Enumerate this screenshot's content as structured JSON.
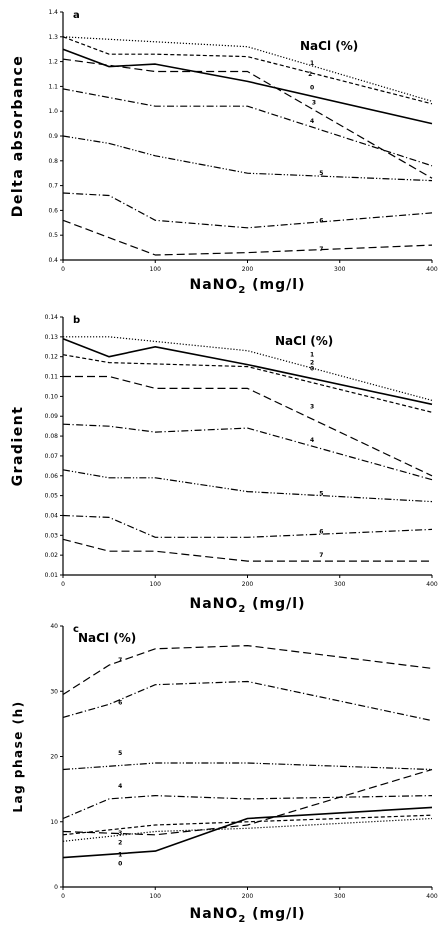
{
  "chart_data": [
    {
      "panel": "a",
      "type": "line",
      "xlabel": "NaNO2 (mg/l)",
      "ylabel": "Delta absorbance",
      "legend_title": "NaCl (%)",
      "xlim": [
        0,
        400
      ],
      "ylim": [
        0.4,
        1.4
      ],
      "xticks": [
        "0",
        "100",
        "200",
        "300",
        "400"
      ],
      "yticks": [
        "0.4",
        "0.5",
        "0.6",
        "0.7",
        "0.8",
        "0.9",
        "1.0",
        "1.1",
        "1.2",
        "1.3",
        "1.4"
      ],
      "series": [
        {
          "name": "0",
          "style": "solid",
          "points": [
            [
              0,
              1.25
            ],
            [
              50,
              1.18
            ],
            [
              100,
              1.19
            ],
            [
              200,
              1.12
            ],
            [
              400,
              0.95
            ]
          ],
          "label_at": [
            270,
            1.095
          ]
        },
        {
          "name": "1",
          "style": "dotted",
          "points": [
            [
              0,
              1.3
            ],
            [
              100,
              1.28
            ],
            [
              200,
              1.26
            ],
            [
              400,
              1.04
            ]
          ],
          "label_at": [
            270,
            1.195
          ]
        },
        {
          "name": "2",
          "style": "dashed",
          "points": [
            [
              0,
              1.3
            ],
            [
              50,
              1.23
            ],
            [
              100,
              1.23
            ],
            [
              200,
              1.22
            ],
            [
              400,
              1.03
            ]
          ],
          "label_at": [
            268,
            1.15
          ]
        },
        {
          "name": "3",
          "style": "long-dash",
          "points": [
            [
              0,
              1.21
            ],
            [
              100,
              1.16
            ],
            [
              200,
              1.16
            ],
            [
              400,
              0.73
            ]
          ],
          "label_at": [
            272,
            1.035
          ]
        },
        {
          "name": "4",
          "style": "dash-dot",
          "points": [
            [
              0,
              1.09
            ],
            [
              100,
              1.02
            ],
            [
              200,
              1.02
            ],
            [
              400,
              0.78
            ]
          ],
          "label_at": [
            270,
            0.96
          ]
        },
        {
          "name": "5",
          "style": "dash-dot-dot",
          "points": [
            [
              0,
              0.9
            ],
            [
              50,
              0.87
            ],
            [
              100,
              0.82
            ],
            [
              200,
              0.75
            ],
            [
              400,
              0.72
            ]
          ],
          "label_at": [
            280,
            0.75
          ]
        },
        {
          "name": "6",
          "style": "dash-dot",
          "points": [
            [
              0,
              0.67
            ],
            [
              50,
              0.66
            ],
            [
              100,
              0.56
            ],
            [
              200,
              0.53
            ],
            [
              400,
              0.59
            ]
          ],
          "label_at": [
            280,
            0.56
          ]
        },
        {
          "name": "7",
          "style": "long-dash",
          "points": [
            [
              0,
              0.56
            ],
            [
              100,
              0.42
            ],
            [
              200,
              0.43
            ],
            [
              400,
              0.46
            ]
          ],
          "label_at": [
            280,
            0.445
          ]
        }
      ]
    },
    {
      "panel": "b",
      "type": "line",
      "xlabel": "NaNO2 (mg/l)",
      "ylabel": "Gradient",
      "legend_title": "NaCl (%)",
      "xlim": [
        0,
        400
      ],
      "ylim": [
        0.01,
        0.14
      ],
      "xticks": [
        "0",
        "100",
        "200",
        "300",
        "400"
      ],
      "yticks": [
        "0.01",
        "0.02",
        "0.03",
        "0.04",
        "0.05",
        "0.06",
        "0.07",
        "0.08",
        "0.09",
        "0.10",
        "0.11",
        "0.12",
        "0.13",
        "0.14"
      ],
      "series": [
        {
          "name": "0",
          "style": "solid",
          "points": [
            [
              0,
              0.129
            ],
            [
              50,
              0.12
            ],
            [
              100,
              0.125
            ],
            [
              200,
              0.116
            ],
            [
              400,
              0.096
            ]
          ],
          "label_at": [
            270,
            0.114
          ]
        },
        {
          "name": "1",
          "style": "dotted",
          "points": [
            [
              0,
              0.13
            ],
            [
              50,
              0.13
            ],
            [
              200,
              0.123
            ],
            [
              400,
              0.098
            ]
          ],
          "label_at": [
            270,
            0.121
          ]
        },
        {
          "name": "2",
          "style": "dashed",
          "points": [
            [
              0,
              0.121
            ],
            [
              50,
              0.117
            ],
            [
              200,
              0.115
            ],
            [
              400,
              0.092
            ]
          ],
          "label_at": [
            270,
            0.117
          ]
        },
        {
          "name": "3",
          "style": "long-dash",
          "points": [
            [
              0,
              0.11
            ],
            [
              50,
              0.11
            ],
            [
              100,
              0.104
            ],
            [
              200,
              0.104
            ],
            [
              400,
              0.06
            ]
          ],
          "label_at": [
            270,
            0.095
          ]
        },
        {
          "name": "4",
          "style": "dash-dot",
          "points": [
            [
              0,
              0.086
            ],
            [
              50,
              0.085
            ],
            [
              100,
              0.082
            ],
            [
              200,
              0.084
            ],
            [
              400,
              0.058
            ]
          ],
          "label_at": [
            270,
            0.078
          ]
        },
        {
          "name": "5",
          "style": "dash-dot-dot",
          "points": [
            [
              0,
              0.063
            ],
            [
              50,
              0.059
            ],
            [
              100,
              0.059
            ],
            [
              200,
              0.052
            ],
            [
              400,
              0.047
            ]
          ],
          "label_at": [
            280,
            0.051
          ]
        },
        {
          "name": "6",
          "style": "dash-dot",
          "points": [
            [
              0,
              0.04
            ],
            [
              50,
              0.039
            ],
            [
              100,
              0.029
            ],
            [
              200,
              0.029
            ],
            [
              400,
              0.033
            ]
          ],
          "label_at": [
            280,
            0.032
          ]
        },
        {
          "name": "7",
          "style": "long-dash",
          "points": [
            [
              0,
              0.028
            ],
            [
              50,
              0.022
            ],
            [
              100,
              0.022
            ],
            [
              200,
              0.017
            ],
            [
              400,
              0.017
            ]
          ],
          "label_at": [
            280,
            0.02
          ]
        }
      ]
    },
    {
      "panel": "c",
      "type": "line",
      "xlabel": "NaNO2 (mg/l)",
      "ylabel": "Lag phase (h)",
      "legend_title": "NaCl (%)",
      "xlim": [
        0,
        400
      ],
      "ylim": [
        0,
        40
      ],
      "xticks": [
        "0",
        "100",
        "200",
        "300",
        "400"
      ],
      "yticks": [
        "0",
        "10",
        "20",
        "30",
        "40"
      ],
      "series": [
        {
          "name": "0",
          "style": "solid",
          "points": [
            [
              0,
              4.5
            ],
            [
              100,
              5.5
            ],
            [
              200,
              10.5
            ],
            [
              400,
              12.2
            ]
          ],
          "label_at": [
            62,
            3.6
          ]
        },
        {
          "name": "1",
          "style": "dotted",
          "points": [
            [
              0,
              7.0
            ],
            [
              100,
              8.5
            ],
            [
              200,
              9.0
            ],
            [
              400,
              10.5
            ]
          ],
          "label_at": [
            62,
            5.0
          ]
        },
        {
          "name": "2",
          "style": "dashed",
          "points": [
            [
              0,
              8.0
            ],
            [
              100,
              9.5
            ],
            [
              200,
              10.0
            ],
            [
              400,
              11.0
            ]
          ],
          "label_at": [
            62,
            6.8
          ]
        },
        {
          "name": "3",
          "style": "long-dash",
          "points": [
            [
              0,
              8.5
            ],
            [
              100,
              8.0
            ],
            [
              200,
              9.5
            ],
            [
              400,
              18.0
            ]
          ],
          "label_at": [
            62,
            8.3
          ]
        },
        {
          "name": "4",
          "style": "dash-dot",
          "points": [
            [
              0,
              10.5
            ],
            [
              50,
              13.5
            ],
            [
              100,
              14.0
            ],
            [
              200,
              13.5
            ],
            [
              400,
              14.0
            ]
          ],
          "label_at": [
            62,
            15.5
          ]
        },
        {
          "name": "5",
          "style": "dash-dot-dot",
          "points": [
            [
              0,
              18.0
            ],
            [
              100,
              19.0
            ],
            [
              200,
              19.0
            ],
            [
              400,
              18.0
            ]
          ],
          "label_at": [
            62,
            20.5
          ]
        },
        {
          "name": "6",
          "style": "dash-dot",
          "points": [
            [
              0,
              26.0
            ],
            [
              50,
              28.0
            ],
            [
              100,
              31.0
            ],
            [
              200,
              31.5
            ],
            [
              400,
              25.5
            ]
          ],
          "label_at": [
            62,
            28.3
          ]
        },
        {
          "name": "7",
          "style": "long-dash",
          "points": [
            [
              0,
              29.5
            ],
            [
              50,
              34.0
            ],
            [
              100,
              36.5
            ],
            [
              200,
              37.0
            ],
            [
              400,
              33.5
            ]
          ],
          "label_at": [
            62,
            34.8
          ]
        }
      ]
    }
  ]
}
